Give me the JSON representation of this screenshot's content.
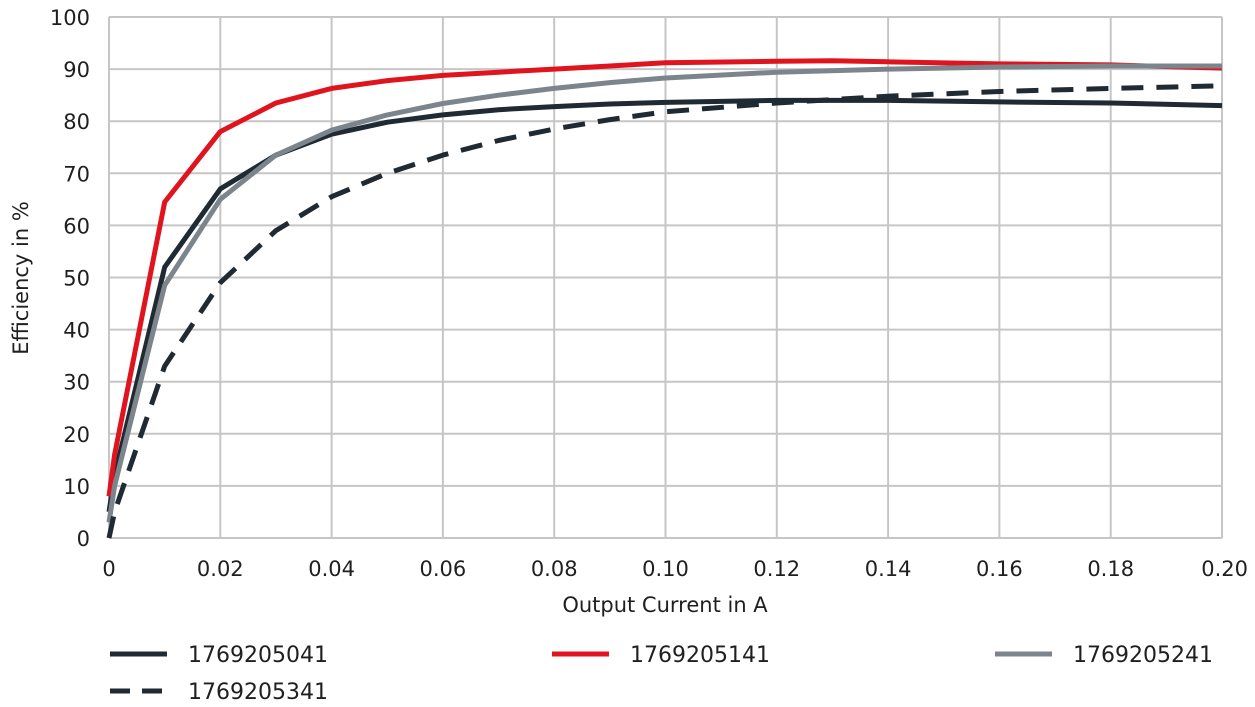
{
  "chart_data": {
    "type": "line",
    "title": "",
    "xlabel": "Output Current in A",
    "ylabel": "Efficiency in %",
    "xlim": [
      0,
      0.2
    ],
    "ylim": [
      0,
      100
    ],
    "grid": true,
    "legend_position": "bottom",
    "x_ticks": [
      "0",
      "0.02",
      "0.04",
      "0.06",
      "0.08",
      "0.10",
      "0.12",
      "0.14",
      "0.16",
      "0.18",
      "0.20"
    ],
    "x_tick_values": [
      0,
      0.02,
      0.04,
      0.06,
      0.08,
      0.1,
      0.12,
      0.14,
      0.16,
      0.18,
      0.2
    ],
    "y_ticks": [
      "0",
      "10",
      "20",
      "30",
      "40",
      "50",
      "60",
      "70",
      "80",
      "90",
      "100"
    ],
    "y_tick_values": [
      0,
      10,
      20,
      30,
      40,
      50,
      60,
      70,
      80,
      90,
      100
    ],
    "series": [
      {
        "name": "1769205041",
        "color": "#1f2a33",
        "style": "solid",
        "x": [
          0,
          0.001,
          0.01,
          0.02,
          0.03,
          0.04,
          0.05,
          0.06,
          0.07,
          0.08,
          0.09,
          0.1,
          0.12,
          0.14,
          0.16,
          0.18,
          0.2
        ],
        "y": [
          5,
          12,
          52,
          67,
          73.5,
          77.5,
          79.8,
          81.2,
          82.2,
          82.8,
          83.3,
          83.6,
          84,
          84,
          83.7,
          83.5,
          83
        ]
      },
      {
        "name": "1769205141",
        "color": "#e0141e",
        "style": "solid",
        "x": [
          0,
          0.001,
          0.01,
          0.02,
          0.03,
          0.04,
          0.05,
          0.06,
          0.07,
          0.08,
          0.09,
          0.1,
          0.12,
          0.13,
          0.14,
          0.16,
          0.18,
          0.2
        ],
        "y": [
          8,
          16,
          64.5,
          78,
          83.5,
          86.3,
          87.8,
          88.8,
          89.4,
          90,
          90.6,
          91.2,
          91.5,
          91.6,
          91.4,
          91,
          90.8,
          90.2
        ]
      },
      {
        "name": "1769205241",
        "color": "#7d858c",
        "style": "solid",
        "x": [
          0,
          0.001,
          0.01,
          0.02,
          0.03,
          0.04,
          0.05,
          0.06,
          0.07,
          0.08,
          0.09,
          0.1,
          0.12,
          0.14,
          0.16,
          0.18,
          0.2
        ],
        "y": [
          3,
          10,
          48.5,
          65,
          73.5,
          78.3,
          81.2,
          83.4,
          85,
          86.3,
          87.4,
          88.3,
          89.4,
          90,
          90.4,
          90.6,
          90.6
        ]
      },
      {
        "name": "1769205341",
        "color": "#1f2a33",
        "style": "dashed",
        "x": [
          0,
          0.001,
          0.01,
          0.02,
          0.03,
          0.04,
          0.05,
          0.06,
          0.07,
          0.08,
          0.09,
          0.1,
          0.12,
          0.14,
          0.16,
          0.18,
          0.2
        ],
        "y": [
          0,
          5,
          33,
          49,
          59,
          65.5,
          70,
          73.5,
          76.3,
          78.5,
          80.3,
          81.8,
          83.5,
          84.8,
          85.7,
          86.3,
          86.8
        ]
      }
    ]
  }
}
